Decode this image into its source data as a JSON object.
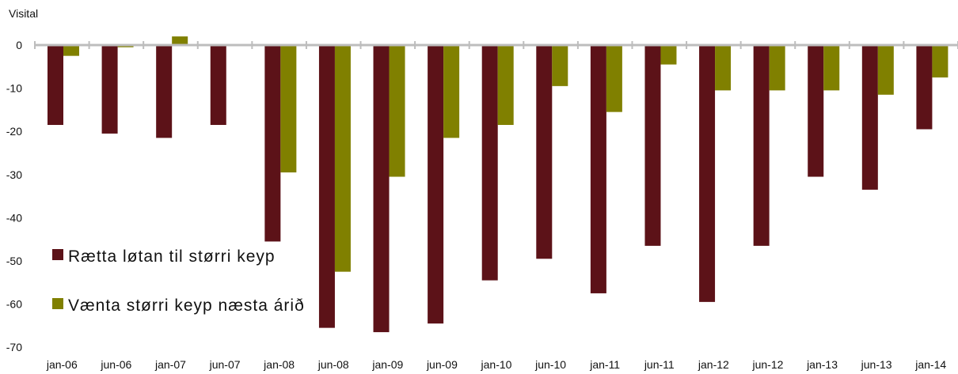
{
  "chart_data": {
    "type": "bar",
    "ylabel": "Visital",
    "ylim": [
      -70,
      0
    ],
    "yticks": [
      0,
      -10,
      -20,
      -30,
      -40,
      -50,
      -60,
      -70
    ],
    "grid": false,
    "legend_position": "lower-left",
    "categories": [
      "jan-06",
      "jun-06",
      "jan-07",
      "jun-07",
      "jan-08",
      "jun-08",
      "jan-09",
      "jun-09",
      "jan-10",
      "jun-10",
      "jan-11",
      "jun-11",
      "jan-12",
      "jun-12",
      "jan-13",
      "jun-13",
      "jan-14"
    ],
    "series": [
      {
        "name": "Rætta løtan til størri keyp",
        "color": "#5c1218",
        "values": [
          -18.5,
          -20.5,
          -21.5,
          -18.5,
          -45.5,
          -65.5,
          -66.5,
          -64.5,
          -54.5,
          -49.5,
          -57.5,
          -46.5,
          -59.5,
          -46.5,
          -30.5,
          -33.5,
          -19.5
        ]
      },
      {
        "name": "Vænta størri keyp næsta árið",
        "color": "#808000",
        "values": [
          -2.5,
          -0.5,
          2.0,
          0,
          -29.5,
          -52.5,
          -30.5,
          -21.5,
          -18.5,
          -9.5,
          -15.5,
          -4.5,
          -10.5,
          -10.5,
          -10.5,
          -11.5,
          -7.5
        ]
      }
    ]
  }
}
